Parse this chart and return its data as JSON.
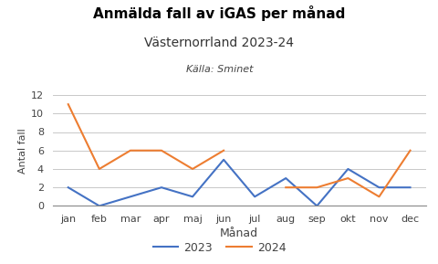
{
  "title_line1": "Anmälda fall av iGAS per månad",
  "title_line2": "Västernorrland 2023-24",
  "subtitle": "Källa: Sminet",
  "xlabel": "Månad",
  "ylabel": "Antal fall",
  "months": [
    "jan",
    "feb",
    "mar",
    "apr",
    "maj",
    "jun",
    "jul",
    "aug",
    "sep",
    "okt",
    "nov",
    "dec"
  ],
  "data_2023": [
    2,
    0,
    1,
    2,
    1,
    5,
    1,
    3,
    0,
    4,
    2,
    2
  ],
  "data_2024": [
    11,
    4,
    6,
    6,
    4,
    6,
    null,
    2,
    2,
    3,
    1,
    6
  ],
  "color_2023": "#4472C4",
  "color_2024": "#ED7D31",
  "ylim": [
    0,
    12
  ],
  "yticks": [
    0,
    2,
    4,
    6,
    8,
    10,
    12
  ],
  "legend_labels": [
    "2023",
    "2024"
  ],
  "background_color": "#ffffff",
  "grid_color": "#c8c8c8"
}
